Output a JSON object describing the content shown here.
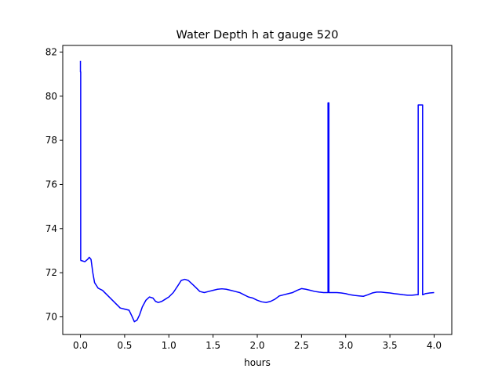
{
  "chart_data": {
    "type": "line",
    "title": "Water Depth h at gauge 520",
    "xlabel": "hours",
    "ylabel": "",
    "xlim": [
      -0.2,
      4.2
    ],
    "ylim": [
      69.2,
      82.3
    ],
    "xticks": [
      0.0,
      0.5,
      1.0,
      1.5,
      2.0,
      2.5,
      3.0,
      3.5,
      4.0
    ],
    "xtick_labels": [
      "0.0",
      "0.5",
      "1.0",
      "1.5",
      "2.0",
      "2.5",
      "3.0",
      "3.5",
      "4.0"
    ],
    "yticks": [
      70,
      72,
      74,
      76,
      78,
      80,
      82
    ],
    "ytick_labels": [
      "70",
      "72",
      "74",
      "76",
      "78",
      "80",
      "82"
    ],
    "grid": false,
    "colors": {
      "line": "#0000ff",
      "axes": "#000000"
    },
    "series": [
      {
        "x": [
          0.0,
          0.0,
          0.003,
          0.003,
          0.005,
          0.01,
          0.05,
          0.08,
          0.1,
          0.12,
          0.14,
          0.16,
          0.2,
          0.25,
          0.3,
          0.35,
          0.4,
          0.45,
          0.5,
          0.55,
          0.58,
          0.61,
          0.64,
          0.67,
          0.7,
          0.74,
          0.78,
          0.82,
          0.85,
          0.88,
          0.92,
          0.96,
          1.0,
          1.05,
          1.1,
          1.14,
          1.18,
          1.22,
          1.26,
          1.3,
          1.35,
          1.4,
          1.45,
          1.5,
          1.55,
          1.6,
          1.65,
          1.7,
          1.75,
          1.8,
          1.85,
          1.9,
          1.95,
          2.0,
          2.05,
          2.1,
          2.15,
          2.2,
          2.25,
          2.3,
          2.35,
          2.4,
          2.45,
          2.5,
          2.55,
          2.6,
          2.65,
          2.7,
          2.75,
          2.8,
          2.8,
          2.81,
          2.81,
          2.815,
          2.815,
          2.85,
          2.9,
          2.95,
          3.0,
          3.05,
          3.1,
          3.15,
          3.2,
          3.25,
          3.3,
          3.35,
          3.4,
          3.45,
          3.5,
          3.55,
          3.6,
          3.65,
          3.7,
          3.75,
          3.8,
          3.82,
          3.82,
          3.87,
          3.87,
          3.9,
          3.95,
          4.0
        ],
        "y": [
          81.6,
          81.1,
          81.1,
          72.6,
          72.55,
          72.55,
          72.5,
          72.6,
          72.7,
          72.6,
          72.0,
          71.55,
          71.3,
          71.2,
          71.0,
          70.8,
          70.6,
          70.4,
          70.35,
          70.3,
          70.05,
          69.78,
          69.85,
          70.1,
          70.45,
          70.75,
          70.9,
          70.85,
          70.7,
          70.65,
          70.7,
          70.8,
          70.9,
          71.1,
          71.4,
          71.65,
          71.7,
          71.65,
          71.5,
          71.35,
          71.15,
          71.1,
          71.15,
          71.2,
          71.25,
          71.27,
          71.25,
          71.2,
          71.15,
          71.1,
          71.0,
          70.9,
          70.85,
          70.75,
          70.68,
          70.65,
          70.7,
          70.8,
          70.95,
          71.0,
          71.05,
          71.1,
          71.2,
          71.28,
          71.25,
          71.2,
          71.15,
          71.12,
          71.1,
          71.1,
          79.7,
          79.7,
          71.1,
          71.1,
          71.1,
          71.1,
          71.1,
          71.08,
          71.05,
          71.0,
          70.97,
          70.95,
          70.93,
          71.0,
          71.08,
          71.12,
          71.12,
          71.1,
          71.08,
          71.05,
          71.03,
          71.0,
          70.98,
          70.98,
          71.0,
          71.0,
          79.6,
          79.6,
          71.0,
          71.05,
          71.08,
          71.1
        ]
      }
    ]
  }
}
